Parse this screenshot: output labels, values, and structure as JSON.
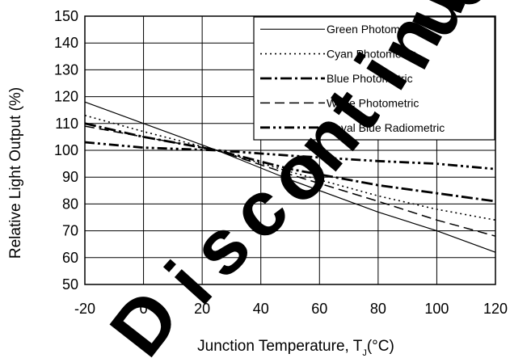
{
  "chart_data": {
    "type": "line",
    "xlabel": "Junction Temperature, T",
    "xlabel_subscript": "J",
    "xlabel_unit": "(°C)",
    "ylabel": "Relative Light Output (%)",
    "xlim": [
      -20,
      120
    ],
    "ylim": [
      50,
      150
    ],
    "x_ticks": [
      "-20",
      "0",
      "20",
      "40",
      "60",
      "80",
      "100",
      "120"
    ],
    "y_ticks": [
      "50",
      "60",
      "70",
      "80",
      "90",
      "100",
      "110",
      "120",
      "130",
      "140",
      "150"
    ],
    "grid": true,
    "legend_position": "top-right",
    "watermark": "Discontinued",
    "series": [
      {
        "name": "Green Photometric",
        "style": "solid",
        "x": [
          -20,
          0,
          25,
          50,
          80,
          100,
          120
        ],
        "y": [
          118,
          110,
          100,
          89,
          77,
          70,
          62
        ]
      },
      {
        "name": "Cyan Photometric",
        "style": "dotted",
        "x": [
          -20,
          0,
          25,
          50,
          80,
          100,
          120
        ],
        "y": [
          113,
          107,
          100,
          92,
          83,
          78,
          74
        ]
      },
      {
        "name": "Blue Photometric",
        "style": "dash-dot",
        "x": [
          -20,
          0,
          25,
          50,
          80,
          100,
          120
        ],
        "y": [
          110,
          105,
          100,
          93,
          87,
          84,
          81
        ]
      },
      {
        "name": "White Photometric",
        "style": "dashed",
        "x": [
          -20,
          0,
          25,
          50,
          80,
          100,
          120
        ],
        "y": [
          109,
          105,
          100,
          91,
          81,
          74,
          68
        ]
      },
      {
        "name": "Royal Blue Radiometric",
        "style": "dash-dot-dot",
        "x": [
          -20,
          0,
          25,
          50,
          80,
          100,
          120
        ],
        "y": [
          103,
          101,
          100,
          98,
          96,
          95,
          93
        ]
      }
    ]
  }
}
